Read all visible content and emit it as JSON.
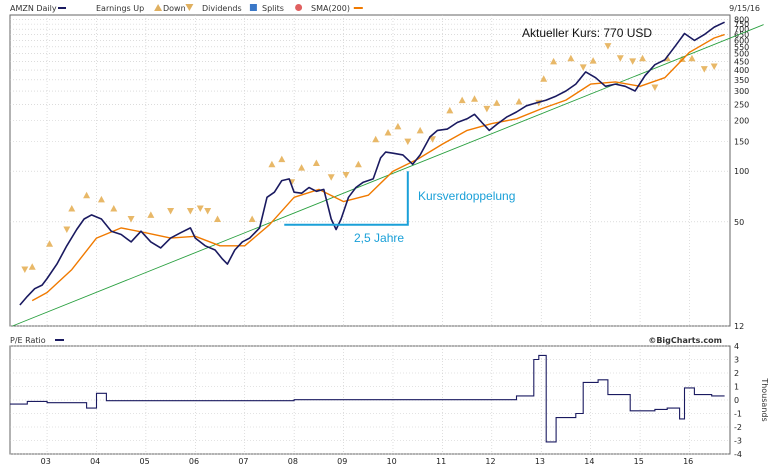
{
  "header": {
    "symbol_label": "AMZN Daily",
    "legend_items": [
      {
        "label": "Earnings Up",
        "icon": "triangle-up-icon",
        "color": "#e0b060"
      },
      {
        "label": "Down",
        "icon": "triangle-down-icon",
        "color": "#e0b060"
      },
      {
        "label": "Dividends",
        "icon": "dividend-square-icon",
        "color": "#3a78c8"
      },
      {
        "label": "Splits",
        "icon": "split-circle-icon",
        "color": "#e06060"
      },
      {
        "label": "SMA(200)",
        "icon": "sma-line-icon",
        "color": "#f07a00"
      }
    ],
    "date": "9/15/16"
  },
  "lower_panel": {
    "title": "P/E Ratio",
    "units_label": "Thousands",
    "brand": "©BigCharts.com"
  },
  "colors": {
    "price": "#1a1a60",
    "sma": "#f07a00",
    "trend": "#2aa040",
    "annotation": "#1aa0d8",
    "marker": "#e8b868",
    "grid": "#c8c8c8"
  },
  "chart_data": [
    {
      "type": "line",
      "scale": "log",
      "title": "AMZN Daily",
      "ylim": [
        12,
        850
      ],
      "y_ticks": [
        12,
        50,
        100,
        150,
        200,
        250,
        300,
        350,
        400,
        450,
        500,
        550,
        600,
        650,
        700,
        750,
        800
      ],
      "x_ticks": [
        "03",
        "04",
        "05",
        "06",
        "07",
        "08",
        "09",
        "10",
        "11",
        "12",
        "13",
        "14",
        "15",
        "16"
      ],
      "grid": true,
      "series": [
        {
          "name": "AMZN Daily",
          "x": [
            2002.45,
            2002.6,
            2002.75,
            2002.9,
            2003.0,
            2003.2,
            2003.4,
            2003.6,
            2003.75,
            2003.9,
            2004.1,
            2004.3,
            2004.5,
            2004.7,
            2004.9,
            2005.1,
            2005.3,
            2005.5,
            2005.7,
            2005.9,
            2006.0,
            2006.2,
            2006.4,
            2006.55,
            2006.65,
            2006.8,
            2006.95,
            2007.1,
            2007.3,
            2007.45,
            2007.6,
            2007.75,
            2007.9,
            2008.0,
            2008.15,
            2008.3,
            2008.45,
            2008.6,
            2008.75,
            2008.85,
            2008.95,
            2009.1,
            2009.25,
            2009.4,
            2009.6,
            2009.75,
            2009.85,
            2010.0,
            2010.2,
            2010.4,
            2010.55,
            2010.75,
            2010.9,
            2011.1,
            2011.3,
            2011.5,
            2011.65,
            2011.8,
            2011.95,
            2012.1,
            2012.3,
            2012.5,
            2012.7,
            2012.9,
            2013.1,
            2013.3,
            2013.5,
            2013.7,
            2013.9,
            2014.1,
            2014.3,
            2014.5,
            2014.7,
            2014.9,
            2015.1,
            2015.3,
            2015.5,
            2015.7,
            2015.9,
            2016.1,
            2016.3,
            2016.5,
            2016.71
          ],
          "values": [
            16,
            18,
            20,
            21,
            23,
            28,
            36,
            45,
            52,
            55,
            52,
            44,
            42,
            38,
            44,
            38,
            35,
            40,
            43,
            46,
            40,
            36,
            34,
            30,
            28,
            34,
            38,
            40,
            46,
            70,
            75,
            88,
            90,
            75,
            74,
            80,
            76,
            78,
            52,
            45,
            52,
            70,
            80,
            86,
            90,
            120,
            130,
            128,
            125,
            110,
            125,
            160,
            175,
            178,
            195,
            205,
            218,
            195,
            175,
            190,
            210,
            225,
            245,
            255,
            265,
            280,
            300,
            330,
            390,
            360,
            320,
            330,
            320,
            300,
            370,
            430,
            460,
            550,
            660,
            600,
            650,
            720,
            770
          ]
        },
        {
          "name": "SMA(200)",
          "x": [
            2002.7,
            2003.0,
            2003.5,
            2004.0,
            2004.5,
            2005.0,
            2005.5,
            2006.0,
            2006.5,
            2007.0,
            2007.5,
            2008.0,
            2008.5,
            2009.0,
            2009.5,
            2010.0,
            2010.5,
            2011.0,
            2011.5,
            2012.0,
            2012.5,
            2013.0,
            2013.5,
            2014.0,
            2014.5,
            2015.0,
            2015.5,
            2016.0,
            2016.5,
            2016.71
          ],
          "values": [
            17,
            19,
            26,
            40,
            46,
            43,
            40,
            41,
            36,
            36,
            48,
            70,
            78,
            66,
            72,
            100,
            118,
            145,
            175,
            192,
            205,
            235,
            265,
            330,
            340,
            320,
            360,
            510,
            620,
            650
          ]
        },
        {
          "name": "Trend",
          "x": [
            2002.3,
            2017.5
          ],
          "values": [
            12,
            745
          ]
        }
      ],
      "earnings_up_markers": [
        [
          2002.7,
          27
        ],
        [
          2003.05,
          37
        ],
        [
          2003.5,
          60
        ],
        [
          2003.8,
          72
        ],
        [
          2004.1,
          68
        ],
        [
          2004.35,
          60
        ],
        [
          2005.1,
          55
        ],
        [
          2006.45,
          52
        ],
        [
          2007.15,
          52
        ],
        [
          2007.55,
          110
        ],
        [
          2007.75,
          118
        ],
        [
          2008.15,
          105
        ],
        [
          2008.45,
          112
        ],
        [
          2009.3,
          110
        ],
        [
          2009.65,
          155
        ],
        [
          2009.9,
          170
        ],
        [
          2010.1,
          185
        ],
        [
          2010.55,
          175
        ],
        [
          2011.15,
          230
        ],
        [
          2011.4,
          265
        ],
        [
          2011.65,
          270
        ],
        [
          2012.1,
          255
        ],
        [
          2012.55,
          260
        ],
        [
          2013.05,
          355
        ],
        [
          2013.25,
          450
        ],
        [
          2013.6,
          470
        ],
        [
          2014.05,
          455
        ],
        [
          2015.05,
          470
        ],
        [
          2015.55,
          470
        ],
        [
          2015.85,
          465
        ],
        [
          2016.05,
          470
        ]
      ],
      "earnings_down_markers": [
        [
          2002.55,
          26
        ],
        [
          2003.4,
          45
        ],
        [
          2004.7,
          52
        ],
        [
          2005.5,
          58
        ],
        [
          2005.9,
          58
        ],
        [
          2006.1,
          60
        ],
        [
          2006.25,
          58
        ],
        [
          2007.95,
          86
        ],
        [
          2008.75,
          92
        ],
        [
          2009.05,
          95
        ],
        [
          2010.3,
          150
        ],
        [
          2010.8,
          155
        ],
        [
          2011.9,
          235
        ],
        [
          2012.95,
          255
        ],
        [
          2013.85,
          415
        ],
        [
          2014.35,
          555
        ],
        [
          2014.6,
          470
        ],
        [
          2014.85,
          450
        ],
        [
          2015.3,
          315
        ],
        [
          2016.3,
          405
        ],
        [
          2016.5,
          420
        ]
      ]
    },
    {
      "type": "line",
      "title": "P/E Ratio",
      "ylabel": "Thousands",
      "ylim": [
        -4,
        4
      ],
      "y_ticks": [
        -4,
        -3,
        -2,
        -1,
        0,
        1,
        2,
        3,
        4
      ],
      "x_ticks": [
        "03",
        "04",
        "05",
        "06",
        "07",
        "08",
        "09",
        "10",
        "11",
        "12",
        "13",
        "14",
        "15",
        "16"
      ],
      "grid": true,
      "series": [
        {
          "name": "P/E Ratio",
          "x": [
            2002.25,
            2002.6,
            2002.6,
            2003.0,
            2003.0,
            2003.8,
            2003.8,
            2004.0,
            2004.0,
            2004.2,
            2004.2,
            2008.0,
            2008.0,
            2012.5,
            2012.5,
            2012.85,
            2012.85,
            2012.95,
            2012.95,
            2013.1,
            2013.1,
            2013.3,
            2013.3,
            2013.7,
            2013.7,
            2013.85,
            2013.85,
            2014.15,
            2014.15,
            2014.35,
            2014.35,
            2014.8,
            2014.8,
            2015.3,
            2015.3,
            2015.55,
            2015.55,
            2015.8,
            2015.8,
            2015.9,
            2015.9,
            2016.1,
            2016.1,
            2016.45,
            2016.45,
            2016.71
          ],
          "values": [
            -0.3,
            -0.3,
            -0.1,
            -0.1,
            -0.2,
            -0.2,
            -0.6,
            -0.6,
            0.5,
            0.5,
            -0.05,
            -0.05,
            0.02,
            0.02,
            0.3,
            0.3,
            3.0,
            3.0,
            3.3,
            3.3,
            -3.1,
            -3.1,
            -1.3,
            -1.3,
            -1.0,
            -1.0,
            1.3,
            1.3,
            1.5,
            1.5,
            0.4,
            0.4,
            -0.8,
            -0.8,
            -0.7,
            -0.7,
            -0.6,
            -0.6,
            -1.4,
            -1.4,
            0.9,
            0.9,
            0.4,
            0.4,
            0.3,
            0.3
          ]
        }
      ]
    }
  ],
  "annotations": {
    "price_label": "Aktueller Kurs: 770 USD",
    "doubling_label": "Kursverdoppelung",
    "period_label": "2,5 Jahre",
    "period_start_year": 2007.8,
    "period_end_year": 2010.3,
    "base_price": 48,
    "doubled_price": 100
  }
}
